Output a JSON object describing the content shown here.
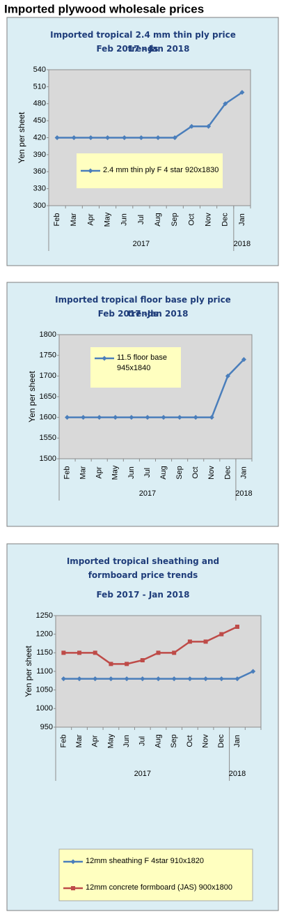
{
  "title": "Imported plywood wholesale prices",
  "chart_data": [
    {
      "type": "line",
      "title": "Imported tropical 2.4 mm thin ply price trends",
      "subtitle": "Feb 2017 - Jan 2018",
      "y_label": "Yen per sheet",
      "categories": [
        "Feb",
        "Mar",
        "Apr",
        "May",
        "Jun",
        "Jul",
        "Aug",
        "Sep",
        "Oct",
        "Nov",
        "Dec",
        "Jan"
      ],
      "year_labels": [
        "2017",
        "2018"
      ],
      "series": [
        {
          "name": "2.4 mm thin ply F 4 star 920x1830",
          "color": "#4a7ebb",
          "values": [
            420,
            420,
            420,
            420,
            420,
            420,
            420,
            420,
            440,
            440,
            480,
            500
          ]
        }
      ],
      "ylim": [
        300,
        540
      ],
      "yticks": [
        300,
        330,
        360,
        390,
        420,
        450,
        480,
        510,
        540
      ],
      "grid": false,
      "legend": "inside"
    },
    {
      "type": "line",
      "title": "Imported tropical floor base ply price trends",
      "subtitle": "Feb 2017 -Jan 2018",
      "y_label": "Yen per sheet",
      "categories": [
        "Feb",
        "Mar",
        "Apr",
        "May",
        "Jun",
        "Jul",
        "Aug",
        "Sep",
        "Oct",
        "Nov",
        "Dec",
        "Jan"
      ],
      "year_labels": [
        "2017",
        "2018"
      ],
      "series": [
        {
          "name": "11.5 floor base 945x1840",
          "color": "#4a7ebb",
          "values": [
            1600,
            1600,
            1600,
            1600,
            1600,
            1600,
            1600,
            1600,
            1600,
            1600,
            1700,
            1740
          ]
        }
      ],
      "ylim": [
        1500,
        1800
      ],
      "yticks": [
        1500,
        1550,
        1600,
        1650,
        1700,
        1750,
        1800
      ],
      "grid": false,
      "legend": "inside"
    },
    {
      "type": "line",
      "title": "Imported tropical sheathing and formboard price trends",
      "subtitle": "Feb 2017 - Jan 2018",
      "y_label": "Yen per sheet",
      "categories": [
        "Feb",
        "Mar",
        "Apr",
        "May",
        "Jun",
        "Jul",
        "Aug",
        "Sep",
        "Oct",
        "Nov",
        "Dec",
        "Jan",
        null
      ],
      "year_labels": [
        "2017",
        "2018"
      ],
      "series": [
        {
          "name": "12mm sheathing F 4star 910x1820",
          "color": "#4a7ebb",
          "values": [
            1080,
            1080,
            1080,
            1080,
            1080,
            1080,
            1080,
            1080,
            1080,
            1080,
            1080,
            1080,
            1100
          ]
        },
        {
          "name": "12mm concrete formboard (JAS) 900x1800",
          "color": "#be4b48",
          "values": [
            1150,
            1150,
            1150,
            1120,
            1120,
            1130,
            1150,
            1150,
            1180,
            1180,
            1200,
            1220,
            null
          ]
        }
      ],
      "ylim": [
        950,
        1250
      ],
      "yticks": [
        950,
        1000,
        1050,
        1100,
        1150,
        1200,
        1250
      ],
      "grid": false,
      "legend": "bottom"
    }
  ]
}
